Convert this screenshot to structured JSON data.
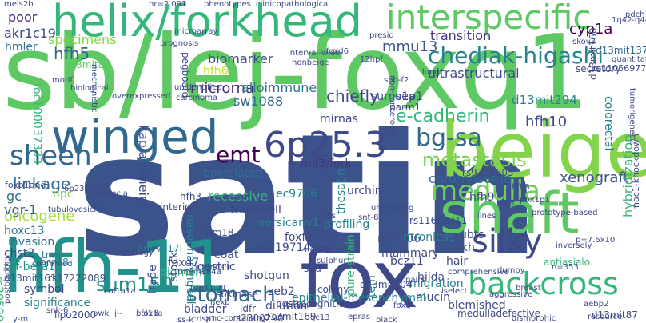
{
  "words": [
    {
      "text": "satin",
      "color": "#3b528b"
    },
    {
      "text": "sb/lej-foxq1",
      "color": "#5ec962"
    },
    {
      "text": "helix/forkhead",
      "color": "#35b779"
    },
    {
      "text": "beige",
      "color": "#84d44b"
    },
    {
      "text": "hfh-11",
      "color": "#21918c"
    },
    {
      "text": "fox",
      "color": "#3e4989"
    },
    {
      "text": "winged",
      "color": "#31688e"
    },
    {
      "text": "shaft",
      "color": "#5ec962"
    },
    {
      "text": "interspecific",
      "color": "#5ec962"
    },
    {
      "text": "sheen",
      "color": "#31688e"
    },
    {
      "text": "6p25.3",
      "color": "#3e4989"
    },
    {
      "text": "medulla",
      "color": "#6ece58"
    },
    {
      "text": "backcross",
      "color": "#35b779"
    },
    {
      "text": "silky",
      "color": "#3e4989"
    },
    {
      "text": "chediak-higashi",
      "color": "#26828e"
    },
    {
      "text": "bg-sa",
      "color": "#31688e"
    },
    {
      "text": "metastasis",
      "color": "#7ad151"
    },
    {
      "text": "stomach",
      "color": "#31688e"
    },
    {
      "text": "sum159",
      "color": "#21918c"
    },
    {
      "text": "emt",
      "color": "#440154"
    },
    {
      "text": "boxrelated",
      "color": "#2c728e"
    },
    {
      "text": "d13mit294",
      "color": "#26828e"
    },
    {
      "text": "transition",
      "color": "#46327e"
    },
    {
      "text": "mmu13",
      "color": "#3b528b"
    },
    {
      "text": "e-cadherin",
      "color": "#35b779"
    },
    {
      "text": "microrna",
      "color": "#472c7a"
    },
    {
      "text": "biomarker",
      "color": "#3e4989"
    },
    {
      "text": "alloimmune",
      "color": "#2c728e"
    },
    {
      "text": "kaplan-meier",
      "color": "#3e4989"
    },
    {
      "text": "linkage",
      "color": "#31688e"
    },
    {
      "text": "oncogene",
      "color": "#a5db36"
    },
    {
      "text": "hfh5",
      "color": "#31688e"
    },
    {
      "text": "hfh10",
      "color": "#3e4989"
    },
    {
      "text": "xenograft",
      "color": "#3b528b"
    },
    {
      "text": "chromosome",
      "color": "#31688e"
    },
    {
      "text": "ultrastructural",
      "color": "#3e4989"
    },
    {
      "text": "cyp1a",
      "color": "#440154"
    },
    {
      "text": "d13mit137",
      "color": "#31688e"
    },
    {
      "text": "akr1c19",
      "color": "#3e4989"
    },
    {
      "text": "hmler",
      "color": "#2c728e"
    },
    {
      "text": "d13mit88",
      "color": "#5ec962"
    },
    {
      "text": "specimens",
      "color": "#84d44b"
    },
    {
      "text": "poor",
      "color": "#482878"
    },
    {
      "text": "loc100037333",
      "color": "#35b779"
    },
    {
      "text": "sw1088",
      "color": "#31688e"
    },
    {
      "text": "chiefly",
      "color": "#3e4989"
    },
    {
      "text": "hfh6",
      "color": "#c2df23"
    },
    {
      "text": "mirnas",
      "color": "#3e4989"
    },
    {
      "text": "sumo1p1",
      "color": "#3e4989"
    },
    {
      "text": "sea",
      "color": "#3e4989"
    },
    {
      "text": "hnf3/fork",
      "color": "#46327e"
    },
    {
      "text": "ec9706",
      "color": "#26828e"
    },
    {
      "text": "recessive",
      "color": "#35b779"
    },
    {
      "text": "urchin",
      "color": "#3e4989"
    },
    {
      "text": "hfh9",
      "color": "#3e4989"
    },
    {
      "text": "colorectal",
      "color": "#26828e"
    },
    {
      "text": "rs9378605",
      "color": "#3e4989"
    },
    {
      "text": "gc",
      "color": "#2c728e"
    },
    {
      "text": "vgr-1",
      "color": "#31688e"
    },
    {
      "text": "npc",
      "color": "#7ad151"
    },
    {
      "text": "hoxc13",
      "color": "#2c728e"
    },
    {
      "text": "invasion",
      "color": "#2c728e"
    },
    {
      "text": "chst2",
      "color": "#3e4989"
    },
    {
      "text": "tnm",
      "color": "#2c728e"
    },
    {
      "text": "tgf-beta1",
      "color": "#21918c"
    },
    {
      "text": "d13mit161",
      "color": "#3b528b"
    },
    {
      "text": "rs17222089",
      "color": "#3b528b"
    },
    {
      "text": "bcz18",
      "color": "#26828e"
    },
    {
      "text": "symbol",
      "color": "#3e4989"
    },
    {
      "text": "rs205990",
      "color": "#35b779"
    },
    {
      "text": "significance",
      "color": "#26828e"
    },
    {
      "text": "lipo2000",
      "color": "#3e4989"
    },
    {
      "text": "interior",
      "color": "#3e4989"
    },
    {
      "text": "hfh3",
      "color": "#3e4989"
    },
    {
      "text": "transwell",
      "color": "#3e4989"
    },
    {
      "text": "profiling",
      "color": "#26828e"
    },
    {
      "text": "rs11699311",
      "color": "#3e4989"
    },
    {
      "text": "nm18",
      "color": "#3e4989"
    },
    {
      "text": "versicanv1",
      "color": "#26828e"
    },
    {
      "text": "foxf2",
      "color": "#3e4989"
    },
    {
      "text": "rs719714",
      "color": "#3e4989"
    },
    {
      "text": "loci",
      "color": "#3e4989"
    },
    {
      "text": "mir-506",
      "color": "#3e4989"
    },
    {
      "text": "intronless",
      "color": "#26828e"
    },
    {
      "text": "mammary",
      "color": "#3e4989"
    },
    {
      "text": "ubts",
      "color": "#3e4989"
    },
    {
      "text": "fkh",
      "color": "#3e4989"
    },
    {
      "text": "hair",
      "color": "#3e4989"
    },
    {
      "text": "appv717i",
      "color": "#26828e"
    },
    {
      "text": "nasopharyngeal",
      "color": "#26828e"
    },
    {
      "text": "coat",
      "color": "#3e4989"
    },
    {
      "text": "fra6e",
      "color": "#3e4989"
    },
    {
      "text": "foxd7",
      "color": "#3e4989"
    },
    {
      "text": "gastric",
      "color": "#3e4989"
    },
    {
      "text": "pigment",
      "color": "#35b779"
    },
    {
      "text": "shotgun",
      "color": "#3e4989"
    },
    {
      "text": "hilda",
      "color": "#3e4989"
    },
    {
      "text": "bcz11",
      "color": "#3e4989"
    },
    {
      "text": "migration",
      "color": "#26828e"
    },
    {
      "text": "mucin",
      "color": "#3e4989"
    },
    {
      "text": "blemished",
      "color": "#3e4989"
    },
    {
      "text": "s6kinase",
      "color": "#3e4989"
    },
    {
      "text": "ldfr",
      "color": "#3e4989"
    },
    {
      "text": "zeb2",
      "color": "#3e4989"
    },
    {
      "text": "dilution",
      "color": "#3e4989"
    },
    {
      "text": "d13mit169",
      "color": "#3e4989"
    },
    {
      "text": "d13mit104",
      "color": "#3e4989"
    },
    {
      "text": "tem",
      "color": "#26828e"
    },
    {
      "text": "pure-strain",
      "color": "#35b779"
    },
    {
      "text": "thesatin",
      "color": "#26828e"
    },
    {
      "text": "bladder",
      "color": "#3e4989"
    },
    {
      "text": "stock",
      "color": "#3e4989"
    },
    {
      "text": "rs2300290",
      "color": "#3e4989"
    },
    {
      "text": "postrecognition",
      "color": "#3e4989"
    },
    {
      "text": "epithelial-mesenchymal",
      "color": "#26828e"
    },
    {
      "text": "medulladefective",
      "color": "#3e4989"
    },
    {
      "text": "d13mit87",
      "color": "#3e4989"
    },
    {
      "text": "hybridization",
      "color": "#35b779"
    },
    {
      "text": "foxp1and",
      "color": "#3e4989"
    },
    {
      "text": "alopecia",
      "color": "#3e4989"
    },
    {
      "text": "postbinding",
      "color": "#3e4989"
    },
    {
      "text": "tubulovesicles",
      "color": "#3e4989"
    },
    {
      "text": "pegboard",
      "color": "#3e4989"
    },
    {
      "text": "parm1",
      "color": "#3e4989"
    },
    {
      "text": "rs11056977",
      "color": "#3e4989"
    },
    {
      "text": "d13mit160",
      "color": "#3e4989"
    },
    {
      "text": "tumorigenesis",
      "color": "#3e4989"
    },
    {
      "text": "quantitative",
      "color": "#3e4989"
    },
    {
      "text": "secretory",
      "color": "#3e4989"
    },
    {
      "text": "nac1-knockdown",
      "color": "#3e4989"
    },
    {
      "text": "antiasialo",
      "color": "#35b779"
    },
    {
      "text": "situ",
      "color": "#3e4989"
    },
    {
      "text": "colony",
      "color": "#3e4989"
    },
    {
      "text": "crisp1",
      "color": "#3e4989"
    },
    {
      "text": "hexb",
      "color": "#3e4989"
    },
    {
      "text": "epras",
      "color": "#3e4989"
    },
    {
      "text": "gc13",
      "color": "#3e4989"
    },
    {
      "text": "black",
      "color": "#3e4989"
    },
    {
      "text": "iselect",
      "color": "#3e4989"
    },
    {
      "text": "aggressive",
      "color": "#3e4989"
    },
    {
      "text": "breast",
      "color": "#3e4989"
    },
    {
      "text": "aebp2",
      "color": "#3e4989"
    },
    {
      "text": "resource",
      "color": "#3e4989"
    },
    {
      "text": "prognostic",
      "color": "#3e4989"
    },
    {
      "text": "foxg",
      "color": "#3e4989"
    },
    {
      "text": "pairs",
      "color": "#3e4989"
    },
    {
      "text": "n=353",
      "color": "#3e4989"
    },
    {
      "text": "dumpy",
      "color": "#3e4989"
    },
    {
      "text": "comprehensive",
      "color": "#3e4989"
    },
    {
      "text": "inversely",
      "color": "#3e4989"
    },
    {
      "text": "p=7.6x10",
      "color": "#3e4989"
    },
    {
      "text": "4.41x10",
      "color": "#3e4989"
    },
    {
      "text": "snt-8",
      "color": "#3e4989"
    },
    {
      "text": "tams",
      "color": "#3e4989"
    },
    {
      "text": "sulphur",
      "color": "#3e4989"
    },
    {
      "text": "underlying",
      "color": "#3e4989"
    },
    {
      "text": "lines",
      "color": "#3e4989"
    },
    {
      "text": "strategy",
      "color": "#3e4989"
    },
    {
      "text": "tmem184a",
      "color": "#3e4989"
    },
    {
      "text": "confirmed",
      "color": "#3e4989"
    },
    {
      "text": "snk-6",
      "color": "#3e4989"
    },
    {
      "text": "pwk",
      "color": "#3e4989"
    },
    {
      "text": "foxd",
      "color": "#3e4989"
    },
    {
      "text": "bcl11a",
      "color": "#3e4989"
    },
    {
      "text": "map",
      "color": "#3e4989"
    },
    {
      "text": "motif",
      "color": "#3e4989"
    },
    {
      "text": "biological",
      "color": "#3e4989"
    },
    {
      "text": "mechanistic",
      "color": "#3e4989"
    },
    {
      "text": "overexpressed",
      "color": "#3e4989"
    },
    {
      "text": "carcinoma",
      "color": "#3e4989"
    },
    {
      "text": "unidentified",
      "color": "#3e4989"
    },
    {
      "text": "microarray",
      "color": "#3e4989"
    },
    {
      "text": "interval-wide",
      "color": "#3e4989"
    },
    {
      "text": "nonbeige",
      "color": "#3e4989"
    },
    {
      "text": "prognosis",
      "color": "#3e4989"
    },
    {
      "text": "non-cancerous",
      "color": "#3e4989"
    },
    {
      "text": "lung",
      "color": "#3e4989"
    },
    {
      "text": "skov3",
      "color": "#3e4989"
    },
    {
      "text": "pdch1",
      "color": "#3e4989"
    },
    {
      "text": "1q42-q44",
      "color": "#3e4989"
    },
    {
      "text": "hr=2.091",
      "color": "#3e4989"
    },
    {
      "text": "phenotypes",
      "color": "#3e4989"
    },
    {
      "text": "clinicopathological",
      "color": "#3e4989"
    },
    {
      "text": "meis2b",
      "color": "#3e4989"
    },
    {
      "text": "col1a1a",
      "color": "#3e4989"
    },
    {
      "text": "6p23-25",
      "color": "#3e4989"
    },
    {
      "text": "dismorphic",
      "color": "#3e4989"
    },
    {
      "text": "foxd6",
      "color": "#3e4989"
    },
    {
      "text": "12hpf",
      "color": "#3e4989"
    },
    {
      "text": "spb-f2",
      "color": "#3e4989"
    },
    {
      "text": "hfh8",
      "color": "#3e4989"
    },
    {
      "text": "pbx1p1",
      "color": "#3e4989"
    },
    {
      "text": "prototype-based",
      "color": "#3e4989"
    },
    {
      "text": "lymph",
      "color": "#3e4989"
    },
    {
      "text": "y-m",
      "color": "#3e4989"
    },
    {
      "text": "ss-k",
      "color": "#3e4989"
    },
    {
      "text": "12p11.21",
      "color": "#3e4989"
    },
    {
      "text": "j--",
      "color": "#3e4989"
    },
    {
      "text": "bmc-containing",
      "color": "#3e4989"
    },
    {
      "text": "presid",
      "color": "#3e4989"
    },
    {
      "text": "ubs",
      "color": "#3e4989"
    }
  ]
}
